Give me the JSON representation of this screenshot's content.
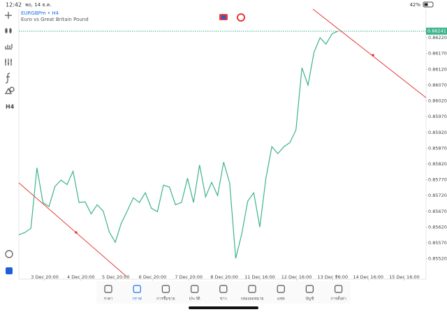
{
  "status_bar": {
    "time": "12:42",
    "date": "พฤ. 14 ธ.ค.",
    "battery": "42%"
  },
  "chart_header": {
    "symbol": "EURGBPm • H4",
    "description": "Euro vs Great Britain Pound"
  },
  "toolbar": {
    "timeframe": "H4"
  },
  "chart_data": {
    "type": "line",
    "x": [
      0,
      1,
      2,
      3,
      4,
      5,
      6,
      7,
      8,
      9,
      10,
      11,
      12,
      13,
      14,
      15,
      16,
      17,
      18,
      19,
      20,
      21,
      22,
      23,
      24,
      25,
      26,
      27,
      28,
      29,
      30,
      31,
      32,
      33,
      34,
      35,
      36,
      37,
      38,
      39,
      40,
      41,
      42,
      43,
      44,
      45,
      46,
      47,
      48,
      49,
      50,
      51,
      52,
      53
    ],
    "series": [
      {
        "color": "#3cb38a",
        "values": [
          0.85596,
          0.85603,
          0.85616,
          0.85808,
          0.85698,
          0.85685,
          0.85749,
          0.85769,
          0.85755,
          0.85797,
          0.85698,
          0.857,
          0.85662,
          0.85691,
          0.85671,
          0.85605,
          0.85572,
          0.85632,
          0.85671,
          0.85713,
          0.85698,
          0.85729,
          0.8568,
          0.85669,
          0.85753,
          0.85747,
          0.85691,
          0.85698,
          0.85775,
          0.85698,
          0.85817,
          0.85716,
          0.85762,
          0.8572,
          0.85826,
          0.8576,
          0.85521,
          0.85598,
          0.85702,
          0.85729,
          0.8562,
          0.85773,
          0.85875,
          0.85853,
          0.85875,
          0.85888,
          0.85928,
          0.86125,
          0.8607,
          0.86174,
          0.8622,
          0.862,
          0.86233,
          0.86241
        ]
      }
    ],
    "current_price": 0.86241,
    "xlim": [
      0,
      67.6
    ],
    "xticks": [
      {
        "value": 4.3,
        "label": "3 Dec 20:00"
      },
      {
        "value": 10.3,
        "label": "4 Dec 20:00"
      },
      {
        "value": 16.1,
        "label": "5 Dec 20:00"
      },
      {
        "value": 22.2,
        "label": "6 Dec 20:00"
      },
      {
        "value": 28.2,
        "label": "7 Dec 20:00"
      },
      {
        "value": 34.1,
        "label": "8 Dec 20:00"
      },
      {
        "value": 40,
        "label": "11 Dec 16:00"
      },
      {
        "value": 46.1,
        "label": "12 Dec 16:00"
      },
      {
        "value": 52.1,
        "label": "13 Dec 16:00"
      },
      {
        "value": 58,
        "label": "14 Dec 16:00"
      },
      {
        "value": 64,
        "label": "15 Dec 16:00"
      }
    ],
    "ylim": [
      0.85455,
      0.86311
    ],
    "yticks": [
      {
        "value": 0.8552,
        "label": "0.85520"
      },
      {
        "value": 0.8557,
        "label": "0.85570"
      },
      {
        "value": 0.8562,
        "label": "0.85620"
      },
      {
        "value": 0.8567,
        "label": "0.85670"
      },
      {
        "value": 0.8572,
        "label": "0.85720"
      },
      {
        "value": 0.8577,
        "label": "0.85770"
      },
      {
        "value": 0.8582,
        "label": "0.85820"
      },
      {
        "value": 0.8587,
        "label": "0.85870"
      },
      {
        "value": 0.8592,
        "label": "0.85920"
      },
      {
        "value": 0.8597,
        "label": "0.85970"
      },
      {
        "value": 0.8602,
        "label": "0.86020"
      },
      {
        "value": 0.8607,
        "label": "0.86070"
      },
      {
        "value": 0.8612,
        "label": "0.86120"
      },
      {
        "value": 0.8617,
        "label": "0.86170"
      },
      {
        "value": 0.8622,
        "label": "0.86220"
      }
    ],
    "grid": false
  },
  "nav": {
    "items": [
      "ราคา",
      "กราฟ",
      "การซื้อขาย",
      "ประวัติ",
      "ข่าว",
      "กล่องจดหมาย",
      "แชท",
      "บัญชี",
      "การตั้งค่า"
    ],
    "active": 1
  }
}
